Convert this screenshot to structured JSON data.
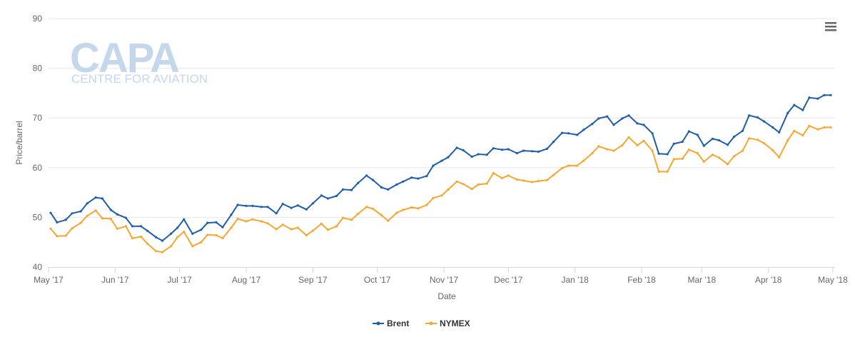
{
  "watermark": {
    "logo_text": "CAPA",
    "tagline": "CENTRE FOR AVIATION"
  },
  "menu": {
    "icon": "hamburger-menu-icon"
  },
  "chart_data": {
    "type": "line",
    "title": "",
    "xlabel": "Date",
    "ylabel": "Price/barrel",
    "ylim": [
      40,
      90
    ],
    "yticks": [
      40,
      50,
      60,
      70,
      80,
      90
    ],
    "xlim": [
      "2017-05-01",
      "2018-05-02"
    ],
    "xticks": [
      {
        "date": "2017-05-01",
        "label": "May '17"
      },
      {
        "date": "2017-06-01",
        "label": "Jun '17"
      },
      {
        "date": "2017-07-01",
        "label": "Jul '17"
      },
      {
        "date": "2017-08-01",
        "label": "Aug '17"
      },
      {
        "date": "2017-09-01",
        "label": "Sep '17"
      },
      {
        "date": "2017-10-01",
        "label": "Oct '17"
      },
      {
        "date": "2017-11-01",
        "label": "Nov '17"
      },
      {
        "date": "2017-12-01",
        "label": "Dec '17"
      },
      {
        "date": "2018-01-01",
        "label": "Jan '18"
      },
      {
        "date": "2018-02-01",
        "label": "Feb '18"
      },
      {
        "date": "2018-03-01",
        "label": "Mar '18"
      },
      {
        "date": "2018-04-01",
        "label": "Apr '18"
      },
      {
        "date": "2018-05-01",
        "label": "May '18"
      }
    ],
    "grid": true,
    "legend": "bottom-center",
    "series": [
      {
        "name": "Brent",
        "color": "#1f5ea8",
        "points": [
          [
            "2017-05-02",
            50.9
          ],
          [
            "2017-05-05",
            49.0
          ],
          [
            "2017-05-09",
            49.5
          ],
          [
            "2017-05-12",
            50.8
          ],
          [
            "2017-05-16",
            51.2
          ],
          [
            "2017-05-19",
            52.8
          ],
          [
            "2017-05-23",
            54.0
          ],
          [
            "2017-05-26",
            53.8
          ],
          [
            "2017-05-30",
            51.5
          ],
          [
            "2017-06-02",
            50.6
          ],
          [
            "2017-06-06",
            49.9
          ],
          [
            "2017-06-09",
            48.2
          ],
          [
            "2017-06-13",
            48.2
          ],
          [
            "2017-06-16",
            47.3
          ],
          [
            "2017-06-20",
            46.0
          ],
          [
            "2017-06-23",
            45.3
          ],
          [
            "2017-06-27",
            46.7
          ],
          [
            "2017-06-30",
            47.9
          ],
          [
            "2017-07-03",
            49.6
          ],
          [
            "2017-07-07",
            46.7
          ],
          [
            "2017-07-11",
            47.5
          ],
          [
            "2017-07-14",
            48.9
          ],
          [
            "2017-07-18",
            49.0
          ],
          [
            "2017-07-21",
            48.0
          ],
          [
            "2017-07-25",
            50.5
          ],
          [
            "2017-07-28",
            52.5
          ],
          [
            "2017-08-01",
            52.3
          ],
          [
            "2017-08-04",
            52.3
          ],
          [
            "2017-08-08",
            52.1
          ],
          [
            "2017-08-11",
            52.1
          ],
          [
            "2017-08-15",
            50.8
          ],
          [
            "2017-08-18",
            52.7
          ],
          [
            "2017-08-22",
            51.9
          ],
          [
            "2017-08-25",
            52.4
          ],
          [
            "2017-08-29",
            51.6
          ],
          [
            "2017-09-01",
            52.8
          ],
          [
            "2017-09-05",
            54.4
          ],
          [
            "2017-09-08",
            53.8
          ],
          [
            "2017-09-12",
            54.3
          ],
          [
            "2017-09-15",
            55.6
          ],
          [
            "2017-09-19",
            55.5
          ],
          [
            "2017-09-22",
            56.9
          ],
          [
            "2017-09-26",
            58.4
          ],
          [
            "2017-09-29",
            57.5
          ],
          [
            "2017-10-03",
            56.0
          ],
          [
            "2017-10-06",
            55.6
          ],
          [
            "2017-10-10",
            56.6
          ],
          [
            "2017-10-13",
            57.2
          ],
          [
            "2017-10-17",
            58.0
          ],
          [
            "2017-10-20",
            57.8
          ],
          [
            "2017-10-24",
            58.3
          ],
          [
            "2017-10-27",
            60.4
          ],
          [
            "2017-10-31",
            61.4
          ],
          [
            "2017-11-03",
            62.1
          ],
          [
            "2017-11-07",
            64.0
          ],
          [
            "2017-11-10",
            63.5
          ],
          [
            "2017-11-14",
            62.2
          ],
          [
            "2017-11-17",
            62.7
          ],
          [
            "2017-11-21",
            62.6
          ],
          [
            "2017-11-24",
            63.9
          ],
          [
            "2017-11-28",
            63.6
          ],
          [
            "2017-12-01",
            63.7
          ],
          [
            "2017-12-05",
            62.9
          ],
          [
            "2017-12-08",
            63.4
          ],
          [
            "2017-12-12",
            63.3
          ],
          [
            "2017-12-15",
            63.2
          ],
          [
            "2017-12-19",
            63.8
          ],
          [
            "2017-12-22",
            65.2
          ],
          [
            "2017-12-26",
            67.0
          ],
          [
            "2017-12-29",
            66.9
          ],
          [
            "2018-01-02",
            66.6
          ],
          [
            "2018-01-05",
            67.6
          ],
          [
            "2018-01-09",
            68.8
          ],
          [
            "2018-01-12",
            69.9
          ],
          [
            "2018-01-16",
            70.3
          ],
          [
            "2018-01-19",
            68.6
          ],
          [
            "2018-01-23",
            69.9
          ],
          [
            "2018-01-26",
            70.5
          ],
          [
            "2018-01-30",
            68.9
          ],
          [
            "2018-02-02",
            68.6
          ],
          [
            "2018-02-06",
            66.9
          ],
          [
            "2018-02-09",
            62.8
          ],
          [
            "2018-02-13",
            62.7
          ],
          [
            "2018-02-16",
            64.8
          ],
          [
            "2018-02-20",
            65.2
          ],
          [
            "2018-02-23",
            67.3
          ],
          [
            "2018-02-27",
            66.6
          ],
          [
            "2018-03-02",
            64.4
          ],
          [
            "2018-03-06",
            65.8
          ],
          [
            "2018-03-09",
            65.5
          ],
          [
            "2018-03-13",
            64.6
          ],
          [
            "2018-03-16",
            66.2
          ],
          [
            "2018-03-20",
            67.4
          ],
          [
            "2018-03-23",
            70.5
          ],
          [
            "2018-03-27",
            70.1
          ],
          [
            "2018-03-30",
            69.3
          ],
          [
            "2018-04-03",
            68.1
          ],
          [
            "2018-04-06",
            67.1
          ],
          [
            "2018-04-10",
            71.0
          ],
          [
            "2018-04-13",
            72.6
          ],
          [
            "2018-04-17",
            71.6
          ],
          [
            "2018-04-20",
            74.1
          ],
          [
            "2018-04-24",
            73.9
          ],
          [
            "2018-04-27",
            74.6
          ],
          [
            "2018-04-30",
            74.6
          ]
        ]
      },
      {
        "name": "NYMEX",
        "color": "#f5a732",
        "points": [
          [
            "2017-05-02",
            47.7
          ],
          [
            "2017-05-05",
            46.2
          ],
          [
            "2017-05-09",
            46.3
          ],
          [
            "2017-05-12",
            47.8
          ],
          [
            "2017-05-16",
            48.9
          ],
          [
            "2017-05-19",
            50.3
          ],
          [
            "2017-05-23",
            51.4
          ],
          [
            "2017-05-26",
            49.8
          ],
          [
            "2017-05-30",
            49.7
          ],
          [
            "2017-06-02",
            47.7
          ],
          [
            "2017-06-06",
            48.2
          ],
          [
            "2017-06-09",
            45.8
          ],
          [
            "2017-06-13",
            46.1
          ],
          [
            "2017-06-16",
            44.7
          ],
          [
            "2017-06-20",
            43.2
          ],
          [
            "2017-06-23",
            43.0
          ],
          [
            "2017-06-27",
            44.2
          ],
          [
            "2017-06-30",
            46.0
          ],
          [
            "2017-07-03",
            47.1
          ],
          [
            "2017-07-07",
            44.2
          ],
          [
            "2017-07-11",
            45.0
          ],
          [
            "2017-07-14",
            46.5
          ],
          [
            "2017-07-18",
            46.4
          ],
          [
            "2017-07-21",
            45.8
          ],
          [
            "2017-07-25",
            47.9
          ],
          [
            "2017-07-28",
            49.7
          ],
          [
            "2017-08-01",
            49.2
          ],
          [
            "2017-08-04",
            49.6
          ],
          [
            "2017-08-08",
            49.2
          ],
          [
            "2017-08-11",
            48.8
          ],
          [
            "2017-08-15",
            47.6
          ],
          [
            "2017-08-18",
            48.5
          ],
          [
            "2017-08-22",
            47.6
          ],
          [
            "2017-08-25",
            47.9
          ],
          [
            "2017-08-29",
            46.4
          ],
          [
            "2017-09-01",
            47.3
          ],
          [
            "2017-09-05",
            48.7
          ],
          [
            "2017-09-08",
            47.5
          ],
          [
            "2017-09-12",
            48.2
          ],
          [
            "2017-09-15",
            49.9
          ],
          [
            "2017-09-19",
            49.5
          ],
          [
            "2017-09-22",
            50.7
          ],
          [
            "2017-09-26",
            52.1
          ],
          [
            "2017-09-29",
            51.7
          ],
          [
            "2017-10-03",
            50.4
          ],
          [
            "2017-10-06",
            49.3
          ],
          [
            "2017-10-10",
            50.9
          ],
          [
            "2017-10-13",
            51.5
          ],
          [
            "2017-10-17",
            52.0
          ],
          [
            "2017-10-20",
            51.8
          ],
          [
            "2017-10-24",
            52.5
          ],
          [
            "2017-10-27",
            53.9
          ],
          [
            "2017-10-31",
            54.4
          ],
          [
            "2017-11-03",
            55.6
          ],
          [
            "2017-11-07",
            57.2
          ],
          [
            "2017-11-10",
            56.7
          ],
          [
            "2017-11-14",
            55.7
          ],
          [
            "2017-11-17",
            56.6
          ],
          [
            "2017-11-21",
            56.8
          ],
          [
            "2017-11-24",
            58.9
          ],
          [
            "2017-11-28",
            57.9
          ],
          [
            "2017-12-01",
            58.4
          ],
          [
            "2017-12-05",
            57.6
          ],
          [
            "2017-12-08",
            57.4
          ],
          [
            "2017-12-12",
            57.1
          ],
          [
            "2017-12-15",
            57.3
          ],
          [
            "2017-12-19",
            57.5
          ],
          [
            "2017-12-22",
            58.5
          ],
          [
            "2017-12-26",
            59.9
          ],
          [
            "2017-12-29",
            60.4
          ],
          [
            "2018-01-02",
            60.4
          ],
          [
            "2018-01-05",
            61.4
          ],
          [
            "2018-01-09",
            62.9
          ],
          [
            "2018-01-12",
            64.3
          ],
          [
            "2018-01-16",
            63.7
          ],
          [
            "2018-01-19",
            63.4
          ],
          [
            "2018-01-23",
            64.5
          ],
          [
            "2018-01-26",
            66.1
          ],
          [
            "2018-01-30",
            64.5
          ],
          [
            "2018-02-02",
            65.4
          ],
          [
            "2018-02-06",
            63.4
          ],
          [
            "2018-02-09",
            59.2
          ],
          [
            "2018-02-13",
            59.2
          ],
          [
            "2018-02-16",
            61.7
          ],
          [
            "2018-02-20",
            61.8
          ],
          [
            "2018-02-23",
            63.6
          ],
          [
            "2018-02-27",
            62.9
          ],
          [
            "2018-03-02",
            61.2
          ],
          [
            "2018-03-06",
            62.6
          ],
          [
            "2018-03-09",
            62.0
          ],
          [
            "2018-03-13",
            60.7
          ],
          [
            "2018-03-16",
            62.3
          ],
          [
            "2018-03-20",
            63.4
          ],
          [
            "2018-03-23",
            65.9
          ],
          [
            "2018-03-27",
            65.6
          ],
          [
            "2018-03-30",
            64.9
          ],
          [
            "2018-04-03",
            63.5
          ],
          [
            "2018-04-06",
            62.1
          ],
          [
            "2018-04-10",
            65.5
          ],
          [
            "2018-04-13",
            67.4
          ],
          [
            "2018-04-17",
            66.5
          ],
          [
            "2018-04-20",
            68.4
          ],
          [
            "2018-04-24",
            67.7
          ],
          [
            "2018-04-27",
            68.1
          ],
          [
            "2018-04-30",
            68.1
          ]
        ]
      }
    ]
  }
}
